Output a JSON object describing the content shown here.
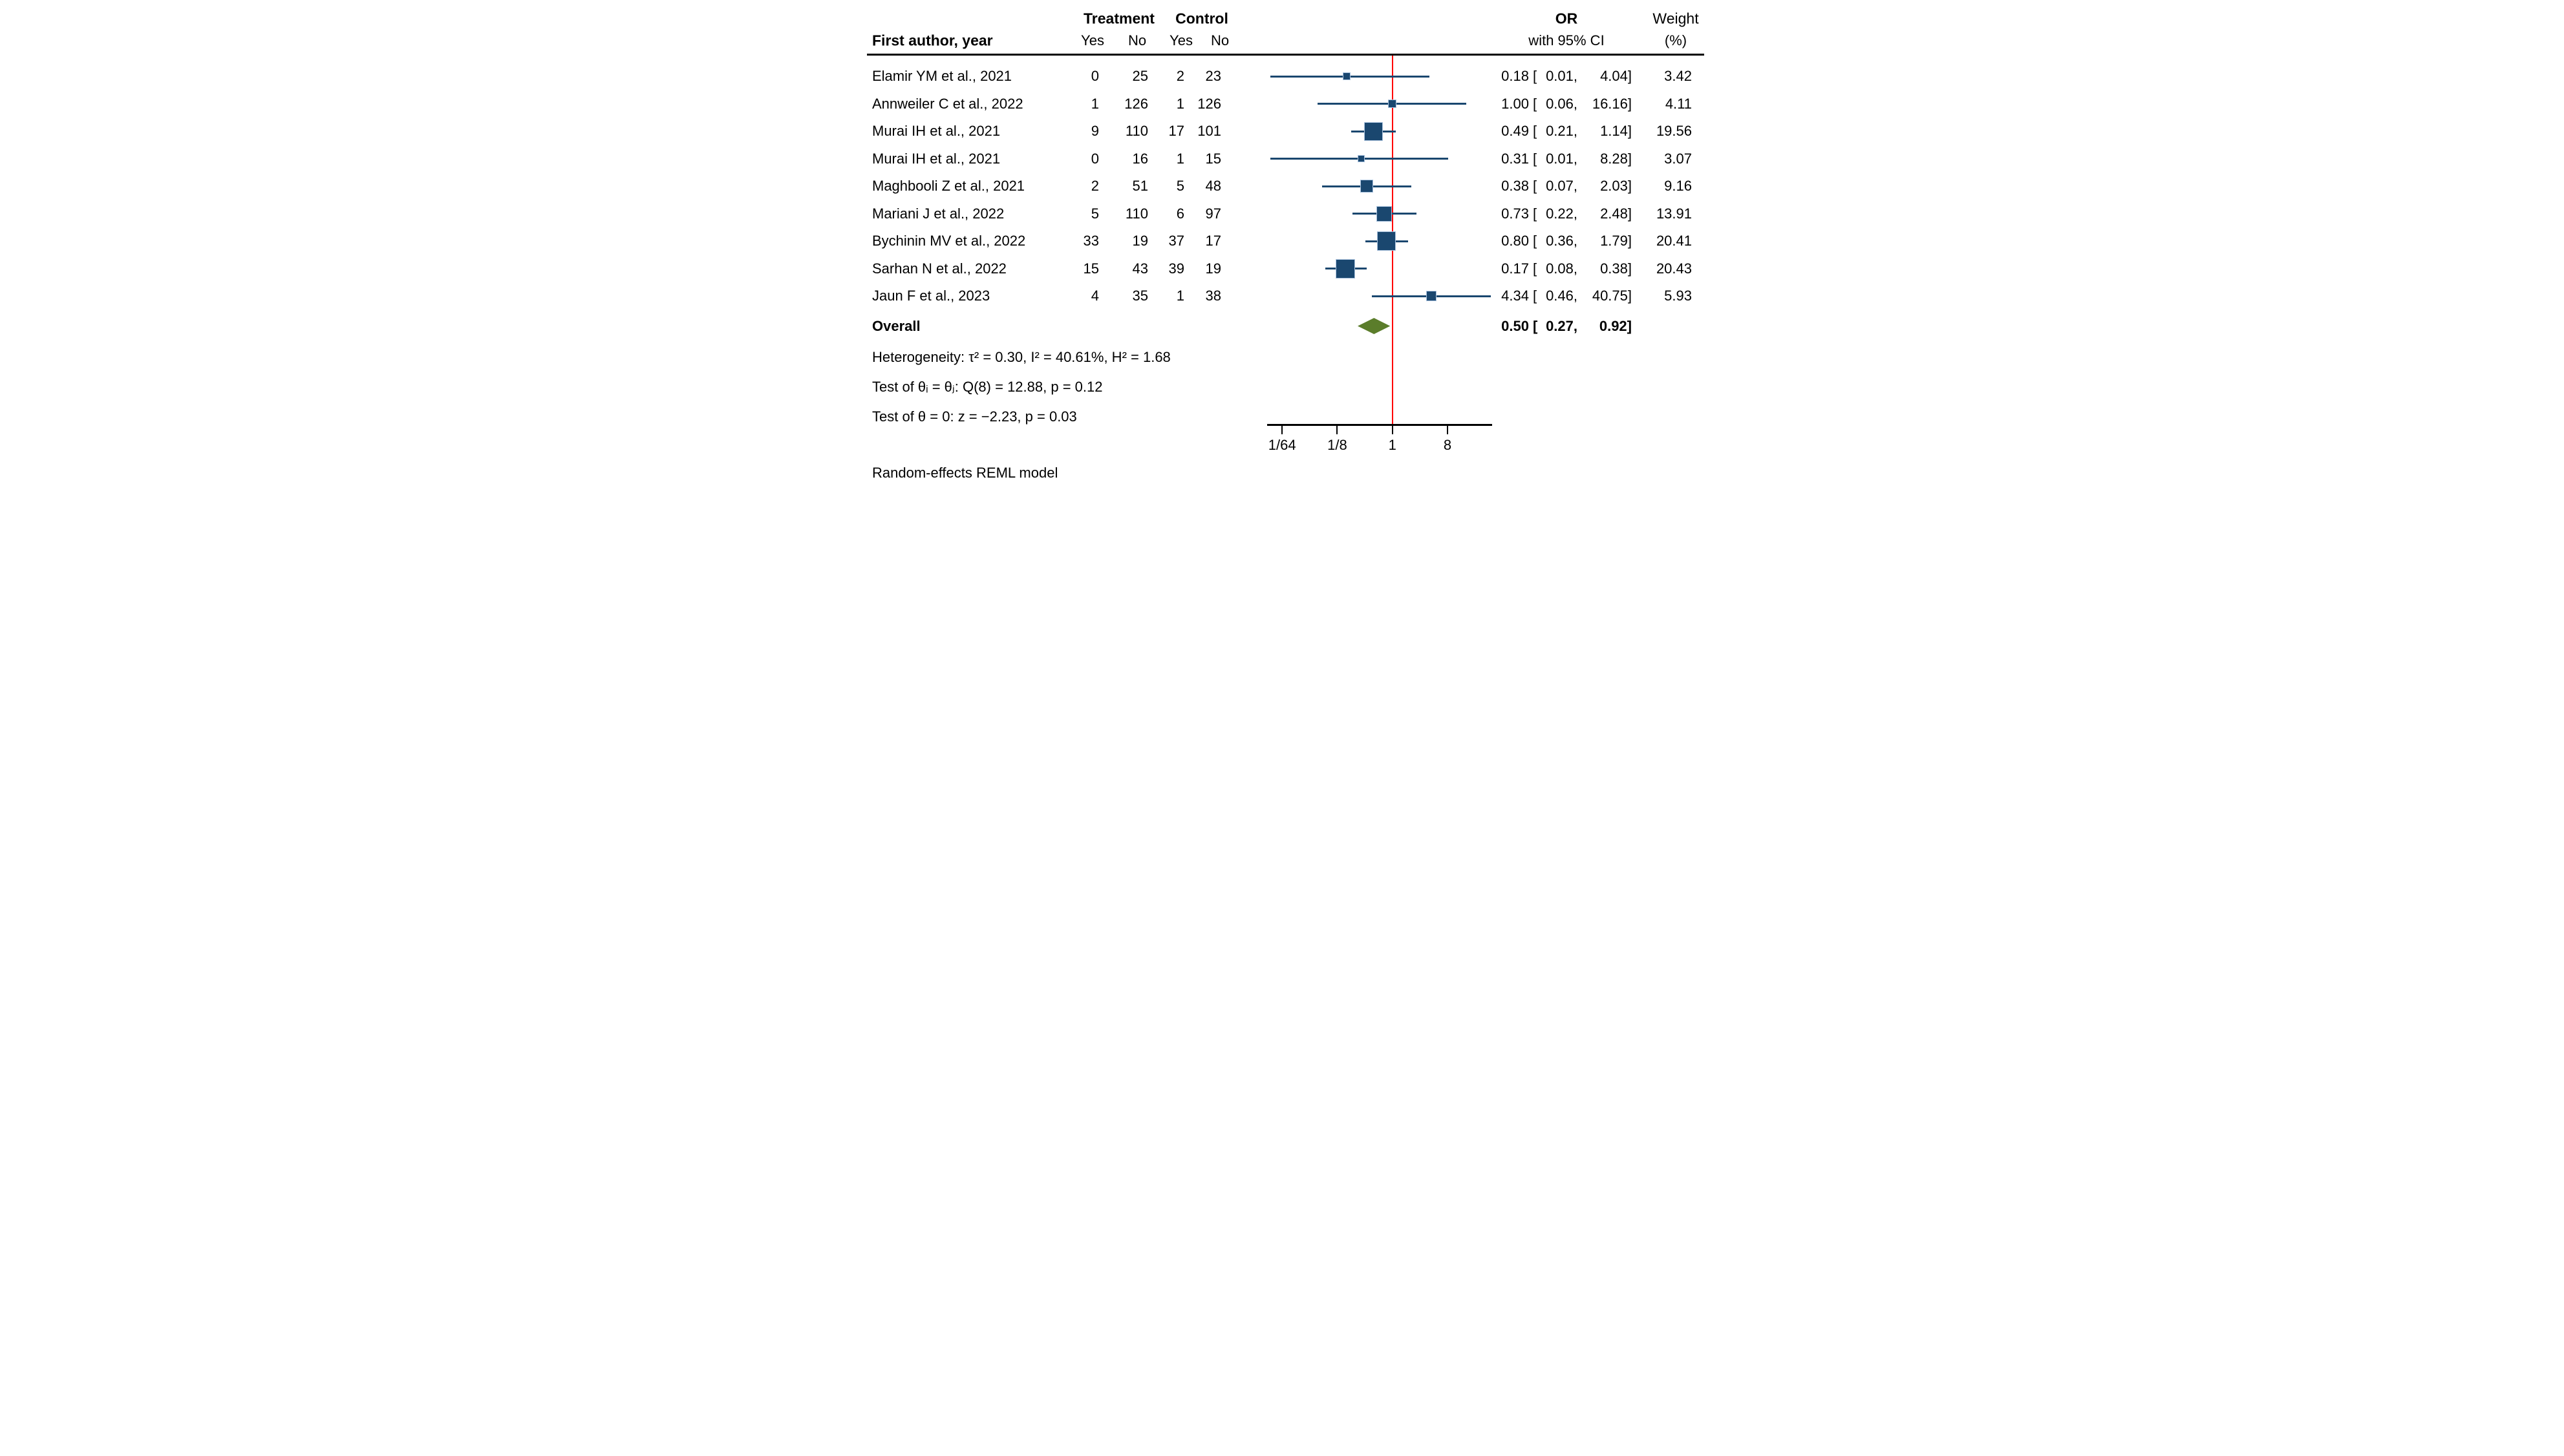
{
  "figure": {
    "header": {
      "col_study": "First author, year",
      "group_treatment": "Treatment",
      "group_control": "Control",
      "treatment_yes": "Yes",
      "treatment_no": "No",
      "control_yes": "Yes",
      "control_no": "No",
      "col_or": "OR",
      "col_or_sub": "with 95% CI",
      "col_weight": "Weight",
      "col_weight_sub": "(%)"
    },
    "or_open_bracket": "[",
    "rows": [
      {
        "study": "Elamir YM et al., 2021",
        "t_yes": "0",
        "t_no": "25",
        "c_yes": "2",
        "c_no": "23",
        "or": "0.18",
        "ci_low": "0.01,",
        "ci_high": "4.04]",
        "weight": "3.42"
      },
      {
        "study": "Annweiler C et al., 2022",
        "t_yes": "1",
        "t_no": "126",
        "c_yes": "1",
        "c_no": "126",
        "or": "1.00",
        "ci_low": "0.06,",
        "ci_high": "16.16]",
        "weight": "4.11"
      },
      {
        "study": "Murai IH et al., 2021",
        "t_yes": "9",
        "t_no": "110",
        "c_yes": "17",
        "c_no": "101",
        "or": "0.49",
        "ci_low": "0.21,",
        "ci_high": "1.14]",
        "weight": "19.56"
      },
      {
        "study": "Murai IH et al., 2021",
        "t_yes": "0",
        "t_no": "16",
        "c_yes": "1",
        "c_no": "15",
        "or": "0.31",
        "ci_low": "0.01,",
        "ci_high": "8.28]",
        "weight": "3.07"
      },
      {
        "study": "Maghbooli Z et al., 2021",
        "t_yes": "2",
        "t_no": "51",
        "c_yes": "5",
        "c_no": "48",
        "or": "0.38",
        "ci_low": "0.07,",
        "ci_high": "2.03]",
        "weight": "9.16"
      },
      {
        "study": "Mariani J et al., 2022",
        "t_yes": "5",
        "t_no": "110",
        "c_yes": "6",
        "c_no": "97",
        "or": "0.73",
        "ci_low": "0.22,",
        "ci_high": "2.48]",
        "weight": "13.91"
      },
      {
        "study": "Bychinin MV et al., 2022",
        "t_yes": "33",
        "t_no": "19",
        "c_yes": "37",
        "c_no": "17",
        "or": "0.80",
        "ci_low": "0.36,",
        "ci_high": "1.79]",
        "weight": "20.41"
      },
      {
        "study": "Sarhan N et al., 2022",
        "t_yes": "15",
        "t_no": "43",
        "c_yes": "39",
        "c_no": "19",
        "or": "0.17",
        "ci_low": "0.08,",
        "ci_high": "0.38]",
        "weight": "20.43"
      },
      {
        "study": "Jaun F et al., 2023",
        "t_yes": "4",
        "t_no": "35",
        "c_yes": "1",
        "c_no": "38",
        "or": "4.34",
        "ci_low": "0.46,",
        "ci_high": "40.75]",
        "weight": "5.93"
      }
    ],
    "overall": {
      "label": "Overall",
      "or": "0.50",
      "ci_low": "0.27,",
      "ci_high": "0.92]"
    },
    "stats": {
      "heterogeneity": "Heterogeneity: τ² = 0.30, I² = 40.61%, H² = 1.68",
      "test_homogeneity": "Test of θᵢ = θⱼ: Q(8) = 12.88, p = 0.12",
      "test_overall": "Test of θ = 0: z = −2.23, p = 0.03"
    },
    "footer": "Random-effects REML model",
    "colors": {
      "marker_navy": "#1A476F",
      "marker_border": "#A9C2DE",
      "reference_red": "#FF0000",
      "diamond_olive": "#5B7D2B",
      "text": "#000000"
    }
  },
  "chart_data": {
    "type": "forest",
    "effect_measure": "OR",
    "x_scale": "log2",
    "ref_line_x": 1,
    "x_ticks": [
      {
        "value": 0.015625,
        "label": "1/64"
      },
      {
        "value": 0.125,
        "label": "1/8"
      },
      {
        "value": 1,
        "label": "1"
      },
      {
        "value": 8,
        "label": "8"
      }
    ],
    "series": [
      {
        "study": "Elamir YM et al., 2021",
        "treatment_yes": 0,
        "treatment_no": 25,
        "control_yes": 2,
        "control_no": 23,
        "or": 0.18,
        "ci_low": 0.01,
        "ci_high": 4.04,
        "weight_pct": 3.42
      },
      {
        "study": "Annweiler C et al., 2022",
        "treatment_yes": 1,
        "treatment_no": 126,
        "control_yes": 1,
        "control_no": 126,
        "or": 1.0,
        "ci_low": 0.06,
        "ci_high": 16.16,
        "weight_pct": 4.11
      },
      {
        "study": "Murai IH et al., 2021",
        "treatment_yes": 9,
        "treatment_no": 110,
        "control_yes": 17,
        "control_no": 101,
        "or": 0.49,
        "ci_low": 0.21,
        "ci_high": 1.14,
        "weight_pct": 19.56
      },
      {
        "study": "Murai IH et al., 2021",
        "treatment_yes": 0,
        "treatment_no": 16,
        "control_yes": 1,
        "control_no": 15,
        "or": 0.31,
        "ci_low": 0.01,
        "ci_high": 8.28,
        "weight_pct": 3.07
      },
      {
        "study": "Maghbooli Z et al., 2021",
        "treatment_yes": 2,
        "treatment_no": 51,
        "control_yes": 5,
        "control_no": 48,
        "or": 0.38,
        "ci_low": 0.07,
        "ci_high": 2.03,
        "weight_pct": 9.16
      },
      {
        "study": "Mariani J et al., 2022",
        "treatment_yes": 5,
        "treatment_no": 110,
        "control_yes": 6,
        "control_no": 97,
        "or": 0.73,
        "ci_low": 0.22,
        "ci_high": 2.48,
        "weight_pct": 13.91
      },
      {
        "study": "Bychinin MV et al., 2022",
        "treatment_yes": 33,
        "treatment_no": 19,
        "control_yes": 37,
        "control_no": 17,
        "or": 0.8,
        "ci_low": 0.36,
        "ci_high": 1.79,
        "weight_pct": 20.41
      },
      {
        "study": "Sarhan N et al., 2022",
        "treatment_yes": 15,
        "treatment_no": 43,
        "control_yes": 39,
        "control_no": 19,
        "or": 0.17,
        "ci_low": 0.08,
        "ci_high": 0.38,
        "weight_pct": 20.43
      },
      {
        "study": "Jaun F et al., 2023",
        "treatment_yes": 4,
        "treatment_no": 35,
        "control_yes": 1,
        "control_no": 38,
        "or": 4.34,
        "ci_low": 0.46,
        "ci_high": 40.75,
        "weight_pct": 5.93
      }
    ],
    "overall": {
      "or": 0.5,
      "ci_low": 0.27,
      "ci_high": 0.92
    },
    "heterogeneity": {
      "tau2": 0.3,
      "I2_pct": 40.61,
      "H2": 1.68,
      "Q_df": 8,
      "Q": 12.88,
      "p_Q": 0.12,
      "z": -2.23,
      "p_z": 0.03
    },
    "model": "Random-effects REML model"
  }
}
